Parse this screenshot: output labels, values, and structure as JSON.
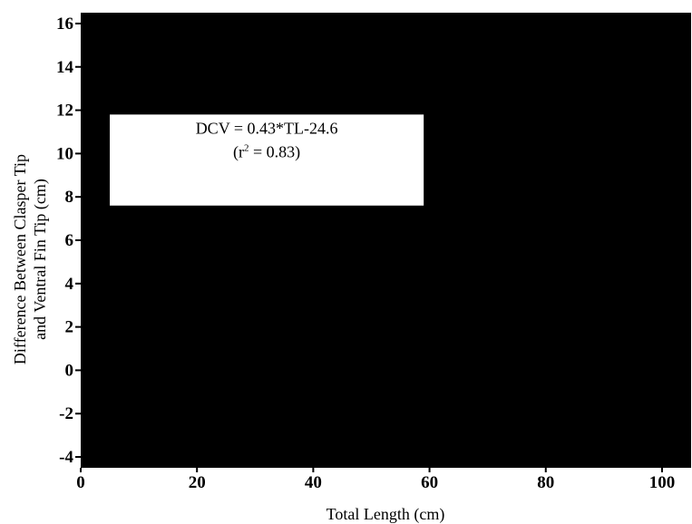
{
  "chart_data": {
    "type": "scatter",
    "title": "",
    "xlabel": "Total Length (cm)",
    "ylabel_lines": [
      "Difference Between Clasper Tip",
      "and Ventral Fin Tip (cm)"
    ],
    "xlim": [
      0,
      105
    ],
    "ylim": [
      -4.5,
      16.5
    ],
    "x_ticks": [
      0,
      20,
      40,
      60,
      80,
      100
    ],
    "x_tick_labels": [
      "0",
      "20",
      "40",
      "60",
      "80",
      "100"
    ],
    "y_ticks": [
      -4,
      -2,
      0,
      2,
      4,
      6,
      8,
      10,
      12,
      14,
      16
    ],
    "y_tick_labels": [
      "-4",
      "-2",
      "0",
      "2",
      "4",
      "6",
      "8",
      "10",
      "12",
      "14",
      "16"
    ],
    "plot_background": "#000000",
    "annotation": {
      "line1": "DCV = 0.43*TL-24.6",
      "line2_prefix": "(r",
      "line2_sup": "2",
      "line2_suffix": " = 0.83)",
      "box_x_range": [
        5,
        59
      ],
      "box_y_range": [
        7.6,
        11.8
      ]
    },
    "grid": false,
    "legend": "none",
    "series": []
  }
}
